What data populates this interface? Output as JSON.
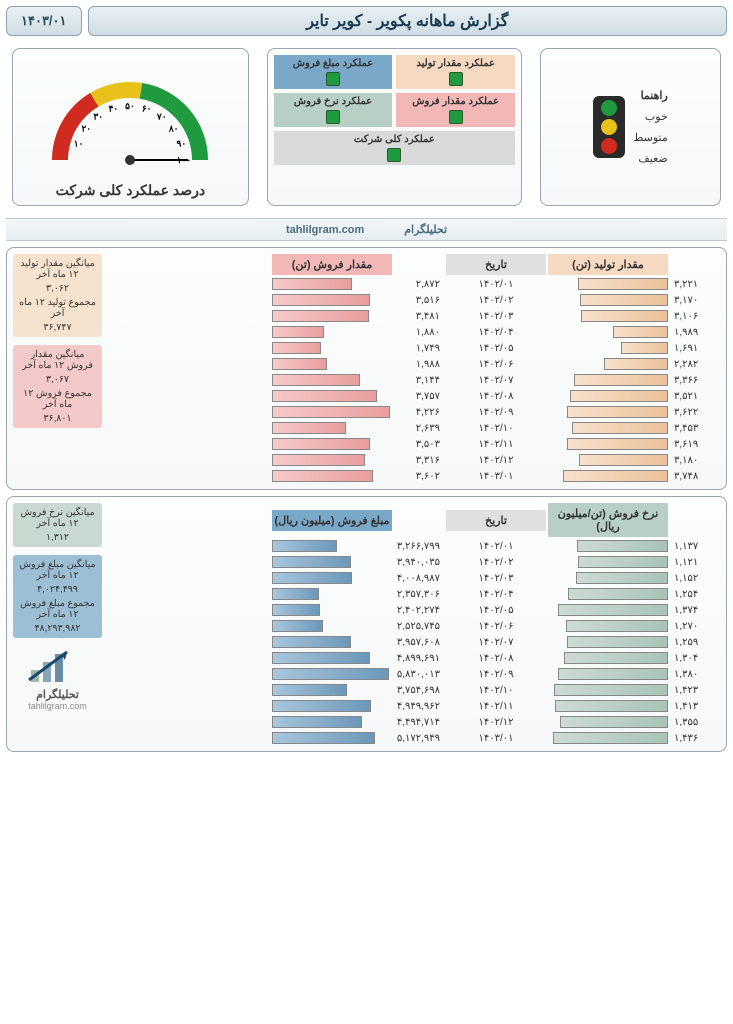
{
  "header": {
    "date": "۱۴۰۳/۰۱",
    "title": "گزارش ماهانه پکویر - کویر تایر"
  },
  "legend": {
    "title": "راهنما",
    "good": "خوب",
    "mid": "متوسط",
    "bad": "ضعیف",
    "colors": {
      "good": "#1f9a3f",
      "mid": "#e8c21a",
      "bad": "#d12b1f"
    }
  },
  "kpi": {
    "cells": [
      {
        "label": "عملکرد مقدار تولید",
        "bg": "#f5d9c0"
      },
      {
        "label": "عملکرد مبلغ فروش",
        "bg": "#7aa8c8"
      },
      {
        "label": "عملکرد مقدار فروش",
        "bg": "#f2b7b7"
      },
      {
        "label": "عملکرد نرخ فروش",
        "bg": "#b8cfc6"
      }
    ],
    "overall": {
      "label": "عملکرد کلی شرکت",
      "bg": "#d9d9d9"
    },
    "indicator_color": "#1f9a3f"
  },
  "gauge": {
    "label": "درصد عملکرد کلی شرکت",
    "ticks": [
      "۱۰",
      "۲۰",
      "۳۰",
      "۴۰",
      "۵۰",
      "۶۰",
      "۷۰",
      "۸۰",
      "۹۰",
      "۱۰۰"
    ],
    "pointer_pct": 100,
    "colors": {
      "red": "#d12b1f",
      "yellow": "#e8c21a",
      "green": "#1f9a3f"
    }
  },
  "brand": {
    "site": "tahlilgram.com",
    "name_fa": "تحلیلگرام"
  },
  "section1": {
    "headers": {
      "prod": "مقدار تولید (تن)",
      "date": "تاریخ",
      "sale": "مقدار فروش (تن)"
    },
    "bar_colors": {
      "prod_fill": "linear-gradient(90deg,#f8e0cb,#eac19a)",
      "sale_fill": "linear-gradient(90deg,#f6c9c9,#e99d9d)"
    },
    "head_bg": {
      "prod": "#f5d9c0",
      "date": "#e0e0e0",
      "sale": "#f2b7b7"
    },
    "max": 4300,
    "rows": [
      {
        "prod_v": 3221,
        "prod_t": "۳,۲۲۱",
        "date": "۱۴۰۲/۰۱",
        "sale_v": 2872,
        "sale_t": "۲,۸۷۲"
      },
      {
        "prod_v": 3170,
        "prod_t": "۳,۱۷۰",
        "date": "۱۴۰۲/۰۲",
        "sale_v": 3516,
        "sale_t": "۳,۵۱۶"
      },
      {
        "prod_v": 3106,
        "prod_t": "۳,۱۰۶",
        "date": "۱۴۰۲/۰۳",
        "sale_v": 3481,
        "sale_t": "۳,۴۸۱"
      },
      {
        "prod_v": 1989,
        "prod_t": "۱,۹۸۹",
        "date": "۱۴۰۲/۰۴",
        "sale_v": 1880,
        "sale_t": "۱,۸۸۰"
      },
      {
        "prod_v": 1691,
        "prod_t": "۱,۶۹۱",
        "date": "۱۴۰۲/۰۵",
        "sale_v": 1749,
        "sale_t": "۱,۷۴۹"
      },
      {
        "prod_v": 2282,
        "prod_t": "۲,۲۸۲",
        "date": "۱۴۰۲/۰۶",
        "sale_v": 1988,
        "sale_t": "۱,۹۸۸"
      },
      {
        "prod_v": 3366,
        "prod_t": "۳,۳۶۶",
        "date": "۱۴۰۲/۰۷",
        "sale_v": 3144,
        "sale_t": "۳,۱۴۴"
      },
      {
        "prod_v": 3521,
        "prod_t": "۳,۵۲۱",
        "date": "۱۴۰۲/۰۸",
        "sale_v": 3757,
        "sale_t": "۳,۷۵۷"
      },
      {
        "prod_v": 3622,
        "prod_t": "۳,۶۲۲",
        "date": "۱۴۰۲/۰۹",
        "sale_v": 4226,
        "sale_t": "۴,۲۲۶"
      },
      {
        "prod_v": 3453,
        "prod_t": "۳,۴۵۳",
        "date": "۱۴۰۲/۱۰",
        "sale_v": 2639,
        "sale_t": "۲,۶۳۹"
      },
      {
        "prod_v": 3619,
        "prod_t": "۳,۶۱۹",
        "date": "۱۴۰۲/۱۱",
        "sale_v": 3503,
        "sale_t": "۳,۵۰۳"
      },
      {
        "prod_v": 3180,
        "prod_t": "۳,۱۸۰",
        "date": "۱۴۰۲/۱۲",
        "sale_v": 3316,
        "sale_t": "۳,۳۱۶"
      },
      {
        "prod_v": 3748,
        "prod_t": "۳,۷۴۸",
        "date": "۱۴۰۳/۰۱",
        "sale_v": 3602,
        "sale_t": "۳,۶۰۲"
      }
    ],
    "stats": {
      "prod": {
        "bg": "#f5e3cf",
        "avg_l": "میانگین مقدار تولید ۱۲ ماه آخر",
        "avg_v": "۳,۰۶۲",
        "sum_l": "مجموع تولید ۱۲ ماه آخر",
        "sum_v": "۳۶,۷۴۷"
      },
      "sale": {
        "bg": "#f4c9c9",
        "avg_l": "میانگین مقدار فروش ۱۲ ماه آخر",
        "avg_v": "۳,۰۶۷",
        "sum_l": "مجموع فروش ۱۲ ماه آخر",
        "sum_v": "۳۶,۸۰۱"
      }
    }
  },
  "section2": {
    "headers": {
      "rate": "نرخ فروش (تن/میلیون ریال)",
      "date": "تاریخ",
      "rev": "مبلغ فروش (میلیون ریال)"
    },
    "bar_colors": {
      "rate_fill": "linear-gradient(90deg,#cddbd4,#a9c3b7)",
      "rev_fill": "linear-gradient(90deg,#a9c6dc,#6b97ba)"
    },
    "head_bg": {
      "rate": "#b8cfc6",
      "date": "#e0e0e0",
      "rev": "#7aa8c8"
    },
    "max_rate": 1500,
    "max_rev": 6000000,
    "rows": [
      {
        "rate_v": 1137,
        "rate_t": "۱,۱۳۷",
        "date": "۱۴۰۲/۰۱",
        "rev_v": 3266799,
        "rev_t": "۳,۲۶۶,۷۹۹"
      },
      {
        "rate_v": 1121,
        "rate_t": "۱,۱۲۱",
        "date": "۱۴۰۲/۰۲",
        "rev_v": 3940035,
        "rev_t": "۳,۹۴۰,۰۳۵"
      },
      {
        "rate_v": 1152,
        "rate_t": "۱,۱۵۲",
        "date": "۱۴۰۲/۰۳",
        "rev_v": 4008987,
        "rev_t": "۴,۰۰۸,۹۸۷"
      },
      {
        "rate_v": 1254,
        "rate_t": "۱,۲۵۴",
        "date": "۱۴۰۲/۰۴",
        "rev_v": 2357306,
        "rev_t": "۲,۳۵۷,۳۰۶"
      },
      {
        "rate_v": 1374,
        "rate_t": "۱,۳۷۴",
        "date": "۱۴۰۲/۰۵",
        "rev_v": 2402274,
        "rev_t": "۲,۴۰۲,۲۷۴"
      },
      {
        "rate_v": 1270,
        "rate_t": "۱,۲۷۰",
        "date": "۱۴۰۲/۰۶",
        "rev_v": 2525745,
        "rev_t": "۲,۵۲۵,۷۴۵"
      },
      {
        "rate_v": 1259,
        "rate_t": "۱,۲۵۹",
        "date": "۱۴۰۲/۰۷",
        "rev_v": 3957608,
        "rev_t": "۳,۹۵۷,۶۰۸"
      },
      {
        "rate_v": 1304,
        "rate_t": "۱,۳۰۴",
        "date": "۱۴۰۲/۰۸",
        "rev_v": 4899691,
        "rev_t": "۴,۸۹۹,۶۹۱"
      },
      {
        "rate_v": 1380,
        "rate_t": "۱,۳۸۰",
        "date": "۱۴۰۲/۰۹",
        "rev_v": 5830013,
        "rev_t": "۵,۸۳۰,۰۱۳"
      },
      {
        "rate_v": 1423,
        "rate_t": "۱,۴۲۳",
        "date": "۱۴۰۲/۱۰",
        "rev_v": 3754698,
        "rev_t": "۳,۷۵۴,۶۹۸"
      },
      {
        "rate_v": 1413,
        "rate_t": "۱,۴۱۳",
        "date": "۱۴۰۲/۱۱",
        "rev_v": 4949962,
        "rev_t": "۴,۹۴۹,۹۶۲"
      },
      {
        "rate_v": 1355,
        "rate_t": "۱,۳۵۵",
        "date": "۱۴۰۲/۱۲",
        "rev_v": 4494714,
        "rev_t": "۴,۴۹۴,۷۱۴"
      },
      {
        "rate_v": 1436,
        "rate_t": "۱,۴۳۶",
        "date": "۱۴۰۳/۰۱",
        "rev_v": 5172949,
        "rev_t": "۵,۱۷۲,۹۴۹"
      }
    ],
    "stats": {
      "rate": {
        "bg": "#c7d9d0",
        "avg_l": "میانگین نرخ فروش ۱۲ ماه آخر",
        "avg_v": "۱,۳۱۲"
      },
      "rev": {
        "bg": "#9dbfd6",
        "avg_l": "میانگین مبلغ فروش ۱۲ ماه آخر",
        "avg_v": "۴,۰۲۴,۴۹۹",
        "sum_l": "مجموع مبلغ فروش ۱۲ ماه آخر",
        "sum_v": "۴۸,۲۹۳,۹۸۲"
      }
    }
  }
}
